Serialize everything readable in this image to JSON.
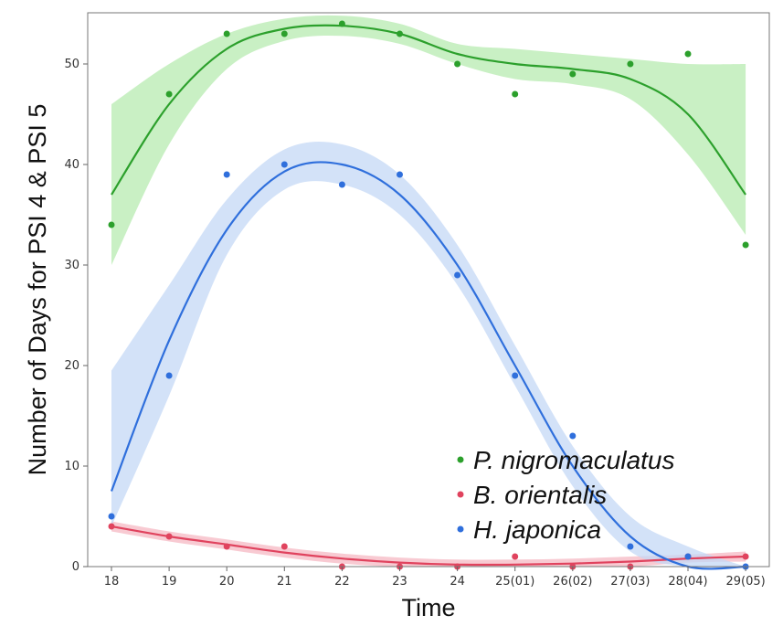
{
  "chart_data": {
    "type": "line",
    "title": "",
    "xlabel": "Time",
    "ylabel": "Number of Days for PSI 4 & PSI 5",
    "ylim": [
      0,
      55
    ],
    "y_ticks": [
      0,
      10,
      20,
      30,
      40,
      50
    ],
    "grid": false,
    "legend_position": "bottom-right",
    "x": [
      18,
      19,
      20,
      21,
      22,
      23,
      24,
      25,
      26,
      27,
      28,
      29
    ],
    "x_tick_labels": [
      "18",
      "19",
      "20",
      "21",
      "22",
      "23",
      "24",
      "25(01)",
      "26(02)",
      "27(03)",
      "28(04)",
      "29(05)"
    ],
    "series": [
      {
        "name": "P. nigromaculatus",
        "color": "#2ca02c",
        "band_color": "#b7ebb0",
        "values": [
          34,
          47,
          53,
          53,
          54,
          53,
          50,
          47,
          49,
          50,
          51,
          32
        ],
        "fit": [
          37.0,
          46.0,
          51.5,
          53.5,
          53.8,
          53.0,
          51.0,
          50.0,
          49.5,
          48.5,
          45.0,
          37.0
        ],
        "band_upper": [
          46.0,
          50.0,
          53.0,
          54.5,
          54.8,
          54.0,
          52.0,
          51.5,
          51.0,
          50.5,
          50.0,
          50.0
        ],
        "band_lower": [
          30.0,
          42.0,
          49.5,
          52.3,
          52.8,
          52.0,
          50.0,
          48.5,
          48.0,
          46.5,
          41.0,
          33.0
        ]
      },
      {
        "name": "B. orientalis",
        "color": "#e0435e",
        "band_color": "#f5b8c3",
        "values": [
          4,
          3,
          2,
          2,
          0,
          0,
          0,
          1,
          0,
          0,
          1,
          1
        ],
        "fit": [
          4.0,
          3.0,
          2.2,
          1.4,
          0.8,
          0.4,
          0.2,
          0.2,
          0.3,
          0.5,
          0.8,
          1.0
        ],
        "band_upper": [
          4.5,
          3.5,
          2.7,
          1.9,
          1.3,
          0.9,
          0.7,
          0.7,
          0.8,
          1.0,
          1.2,
          1.5
        ],
        "band_lower": [
          3.5,
          2.5,
          1.7,
          0.9,
          0.3,
          0.0,
          0.0,
          0.0,
          0.0,
          0.0,
          0.4,
          0.5
        ]
      },
      {
        "name": "H. japonica",
        "color": "#2f6fdc",
        "band_color": "#c4d8f6",
        "values": [
          5,
          19,
          39,
          40,
          38,
          39,
          29,
          19,
          13,
          2,
          1,
          0
        ],
        "fit": [
          7.5,
          22.5,
          33.5,
          39.3,
          40.0,
          37.0,
          30.0,
          20.0,
          10.0,
          3.0,
          0.0,
          0.0
        ],
        "band_upper": [
          19.5,
          28.0,
          36.5,
          41.5,
          42.0,
          39.0,
          32.0,
          22.0,
          12.0,
          5.0,
          2.0,
          0.0
        ],
        "band_lower": [
          4.0,
          17.0,
          31.0,
          37.5,
          38.0,
          35.0,
          28.0,
          18.0,
          8.0,
          1.5,
          0.0,
          0.0
        ]
      }
    ]
  }
}
